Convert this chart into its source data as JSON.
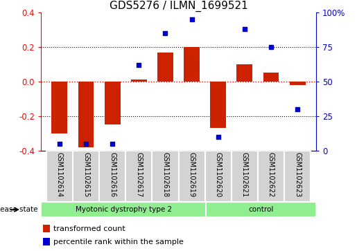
{
  "title": "GDS5276 / ILMN_1699521",
  "samples": [
    "GSM1102614",
    "GSM1102615",
    "GSM1102616",
    "GSM1102617",
    "GSM1102618",
    "GSM1102619",
    "GSM1102620",
    "GSM1102621",
    "GSM1102622",
    "GSM1102623"
  ],
  "red_values": [
    -0.3,
    -0.38,
    -0.25,
    0.01,
    0.17,
    0.2,
    -0.27,
    0.1,
    0.05,
    -0.02
  ],
  "blue_values": [
    5,
    5,
    5,
    62,
    85,
    95,
    10,
    88,
    75,
    30
  ],
  "ylim_left": [
    -0.4,
    0.4
  ],
  "ylim_right": [
    0,
    100
  ],
  "yticks_left": [
    -0.4,
    -0.2,
    0.0,
    0.2,
    0.4
  ],
  "yticks_right": [
    0,
    25,
    50,
    75,
    100
  ],
  "ytick_labels_right": [
    "0",
    "25",
    "50",
    "75",
    "100%"
  ],
  "bar_color": "#CC2200",
  "dot_color": "#0000CC",
  "bg_color": "#FFFFFF",
  "disease_label": "disease state",
  "legend_red": "transformed count",
  "legend_blue": "percentile rank within the sample",
  "title_fontsize": 11,
  "tick_fontsize": 8.5,
  "sample_fontsize": 7,
  "group1_label": "Myotonic dystrophy type 2",
  "group2_label": "control",
  "group1_count": 6,
  "group2_count": 4,
  "group_color": "#90EE90",
  "sample_label_bg": "#D3D3D3"
}
